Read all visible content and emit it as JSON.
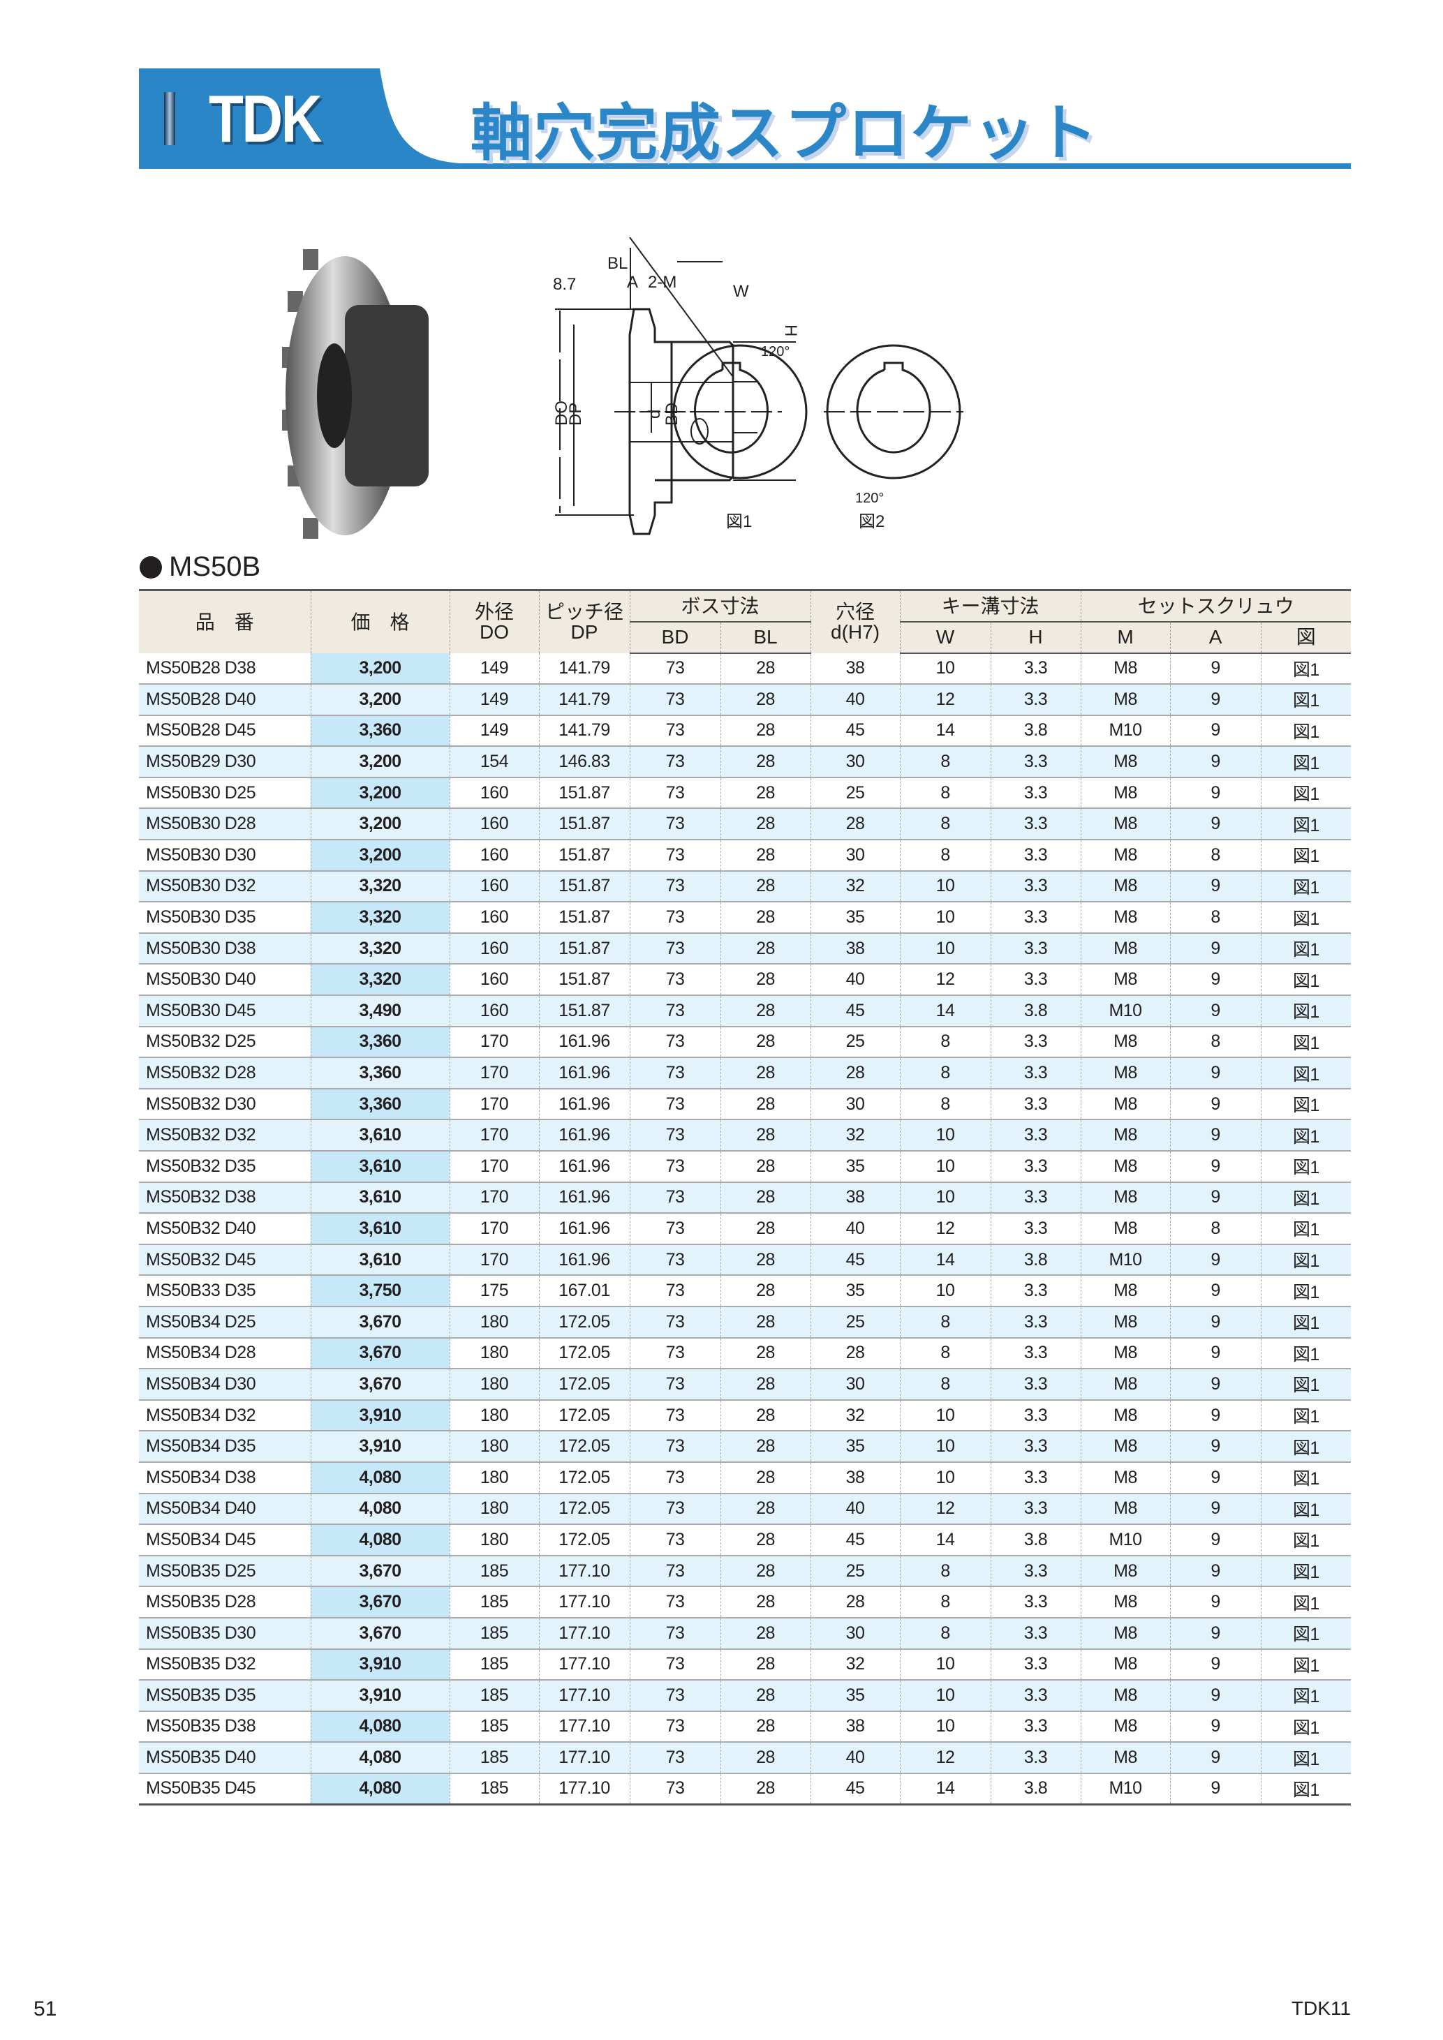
{
  "header": {
    "brand": "TDK",
    "title": "軸穴完成スプロケット",
    "accent": "#2b86c7"
  },
  "diagram": {
    "labels": {
      "pitch": "8.7",
      "bl": "BL",
      "a": "A",
      "m": "2-M",
      "do": "DO",
      "dp": "DP",
      "d": "d",
      "bd": "BD",
      "w": "W",
      "h": "H",
      "angle1": "120°",
      "angle2": "120°",
      "fig1": "図1",
      "fig2": "図2"
    }
  },
  "series": "MS50B",
  "table": {
    "headers": {
      "part": "品　番",
      "price": "価　格",
      "do_jp": "外径",
      "do": "DO",
      "dp_jp": "ピッチ径",
      "dp": "DP",
      "boss": "ボス寸法",
      "bd": "BD",
      "bl": "BL",
      "bore_jp": "穴径",
      "bore": "d(H7)",
      "key": "キー溝寸法",
      "w": "W",
      "h": "H",
      "screw": "セットスクリュウ",
      "m": "M",
      "a": "A",
      "fig": "図"
    },
    "rows": [
      [
        "MS50B28 D38",
        "3,200",
        "149",
        "141.79",
        "73",
        "28",
        "38",
        "10",
        "3.3",
        "M8",
        "9",
        "図1"
      ],
      [
        "MS50B28 D40",
        "3,200",
        "149",
        "141.79",
        "73",
        "28",
        "40",
        "12",
        "3.3",
        "M8",
        "9",
        "図1"
      ],
      [
        "MS50B28 D45",
        "3,360",
        "149",
        "141.79",
        "73",
        "28",
        "45",
        "14",
        "3.8",
        "M10",
        "9",
        "図1"
      ],
      [
        "MS50B29 D30",
        "3,200",
        "154",
        "146.83",
        "73",
        "28",
        "30",
        "8",
        "3.3",
        "M8",
        "9",
        "図1"
      ],
      [
        "MS50B30 D25",
        "3,200",
        "160",
        "151.87",
        "73",
        "28",
        "25",
        "8",
        "3.3",
        "M8",
        "9",
        "図1"
      ],
      [
        "MS50B30 D28",
        "3,200",
        "160",
        "151.87",
        "73",
        "28",
        "28",
        "8",
        "3.3",
        "M8",
        "9",
        "図1"
      ],
      [
        "MS50B30 D30",
        "3,200",
        "160",
        "151.87",
        "73",
        "28",
        "30",
        "8",
        "3.3",
        "M8",
        "8",
        "図1"
      ],
      [
        "MS50B30 D32",
        "3,320",
        "160",
        "151.87",
        "73",
        "28",
        "32",
        "10",
        "3.3",
        "M8",
        "9",
        "図1"
      ],
      [
        "MS50B30 D35",
        "3,320",
        "160",
        "151.87",
        "73",
        "28",
        "35",
        "10",
        "3.3",
        "M8",
        "8",
        "図1"
      ],
      [
        "MS50B30 D38",
        "3,320",
        "160",
        "151.87",
        "73",
        "28",
        "38",
        "10",
        "3.3",
        "M8",
        "9",
        "図1"
      ],
      [
        "MS50B30 D40",
        "3,320",
        "160",
        "151.87",
        "73",
        "28",
        "40",
        "12",
        "3.3",
        "M8",
        "9",
        "図1"
      ],
      [
        "MS50B30 D45",
        "3,490",
        "160",
        "151.87",
        "73",
        "28",
        "45",
        "14",
        "3.8",
        "M10",
        "9",
        "図1"
      ],
      [
        "MS50B32 D25",
        "3,360",
        "170",
        "161.96",
        "73",
        "28",
        "25",
        "8",
        "3.3",
        "M8",
        "8",
        "図1"
      ],
      [
        "MS50B32 D28",
        "3,360",
        "170",
        "161.96",
        "73",
        "28",
        "28",
        "8",
        "3.3",
        "M8",
        "9",
        "図1"
      ],
      [
        "MS50B32 D30",
        "3,360",
        "170",
        "161.96",
        "73",
        "28",
        "30",
        "8",
        "3.3",
        "M8",
        "9",
        "図1"
      ],
      [
        "MS50B32 D32",
        "3,610",
        "170",
        "161.96",
        "73",
        "28",
        "32",
        "10",
        "3.3",
        "M8",
        "9",
        "図1"
      ],
      [
        "MS50B32 D35",
        "3,610",
        "170",
        "161.96",
        "73",
        "28",
        "35",
        "10",
        "3.3",
        "M8",
        "9",
        "図1"
      ],
      [
        "MS50B32 D38",
        "3,610",
        "170",
        "161.96",
        "73",
        "28",
        "38",
        "10",
        "3.3",
        "M8",
        "9",
        "図1"
      ],
      [
        "MS50B32 D40",
        "3,610",
        "170",
        "161.96",
        "73",
        "28",
        "40",
        "12",
        "3.3",
        "M8",
        "8",
        "図1"
      ],
      [
        "MS50B32 D45",
        "3,610",
        "170",
        "161.96",
        "73",
        "28",
        "45",
        "14",
        "3.8",
        "M10",
        "9",
        "図1"
      ],
      [
        "MS50B33 D35",
        "3,750",
        "175",
        "167.01",
        "73",
        "28",
        "35",
        "10",
        "3.3",
        "M8",
        "9",
        "図1"
      ],
      [
        "MS50B34 D25",
        "3,670",
        "180",
        "172.05",
        "73",
        "28",
        "25",
        "8",
        "3.3",
        "M8",
        "9",
        "図1"
      ],
      [
        "MS50B34 D28",
        "3,670",
        "180",
        "172.05",
        "73",
        "28",
        "28",
        "8",
        "3.3",
        "M8",
        "9",
        "図1"
      ],
      [
        "MS50B34 D30",
        "3,670",
        "180",
        "172.05",
        "73",
        "28",
        "30",
        "8",
        "3.3",
        "M8",
        "9",
        "図1"
      ],
      [
        "MS50B34 D32",
        "3,910",
        "180",
        "172.05",
        "73",
        "28",
        "32",
        "10",
        "3.3",
        "M8",
        "9",
        "図1"
      ],
      [
        "MS50B34 D35",
        "3,910",
        "180",
        "172.05",
        "73",
        "28",
        "35",
        "10",
        "3.3",
        "M8",
        "9",
        "図1"
      ],
      [
        "MS50B34 D38",
        "4,080",
        "180",
        "172.05",
        "73",
        "28",
        "38",
        "10",
        "3.3",
        "M8",
        "9",
        "図1"
      ],
      [
        "MS50B34 D40",
        "4,080",
        "180",
        "172.05",
        "73",
        "28",
        "40",
        "12",
        "3.3",
        "M8",
        "9",
        "図1"
      ],
      [
        "MS50B34 D45",
        "4,080",
        "180",
        "172.05",
        "73",
        "28",
        "45",
        "14",
        "3.8",
        "M10",
        "9",
        "図1"
      ],
      [
        "MS50B35 D25",
        "3,670",
        "185",
        "177.10",
        "73",
        "28",
        "25",
        "8",
        "3.3",
        "M8",
        "9",
        "図1"
      ],
      [
        "MS50B35 D28",
        "3,670",
        "185",
        "177.10",
        "73",
        "28",
        "28",
        "8",
        "3.3",
        "M8",
        "9",
        "図1"
      ],
      [
        "MS50B35 D30",
        "3,670",
        "185",
        "177.10",
        "73",
        "28",
        "30",
        "8",
        "3.3",
        "M8",
        "9",
        "図1"
      ],
      [
        "MS50B35 D32",
        "3,910",
        "185",
        "177.10",
        "73",
        "28",
        "32",
        "10",
        "3.3",
        "M8",
        "9",
        "図1"
      ],
      [
        "MS50B35 D35",
        "3,910",
        "185",
        "177.10",
        "73",
        "28",
        "35",
        "10",
        "3.3",
        "M8",
        "9",
        "図1"
      ],
      [
        "MS50B35 D38",
        "4,080",
        "185",
        "177.10",
        "73",
        "28",
        "38",
        "10",
        "3.3",
        "M8",
        "9",
        "図1"
      ],
      [
        "MS50B35 D40",
        "4,080",
        "185",
        "177.10",
        "73",
        "28",
        "40",
        "12",
        "3.3",
        "M8",
        "9",
        "図1"
      ],
      [
        "MS50B35 D45",
        "4,080",
        "185",
        "177.10",
        "73",
        "28",
        "45",
        "14",
        "3.8",
        "M10",
        "9",
        "図1"
      ]
    ]
  },
  "footer": {
    "page": "51",
    "code": "TDK11"
  }
}
